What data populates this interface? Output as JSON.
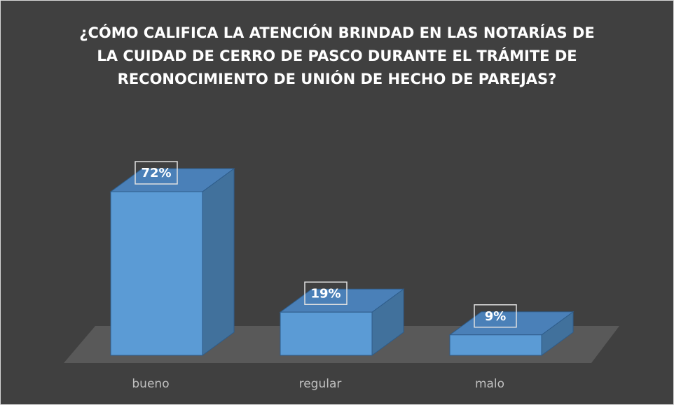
{
  "chart_data": {
    "type": "bar3d",
    "title": "¿CÓMO CALIFICA LA ATENCIÓN BRINDAD EN LAS NOTARÍAS DE LA CUIDAD DE CERRO DE PASCO DURANTE EL TRÁMITE DE RECONOCIMIENTO DE UNIÓN DE HECHO DE PAREJAS?",
    "categories": [
      "bueno",
      "regular",
      "malo"
    ],
    "values": [
      72,
      19,
      9
    ],
    "value_labels": [
      "72%",
      "19%",
      "9%"
    ],
    "color": "#5b9bd5"
  }
}
